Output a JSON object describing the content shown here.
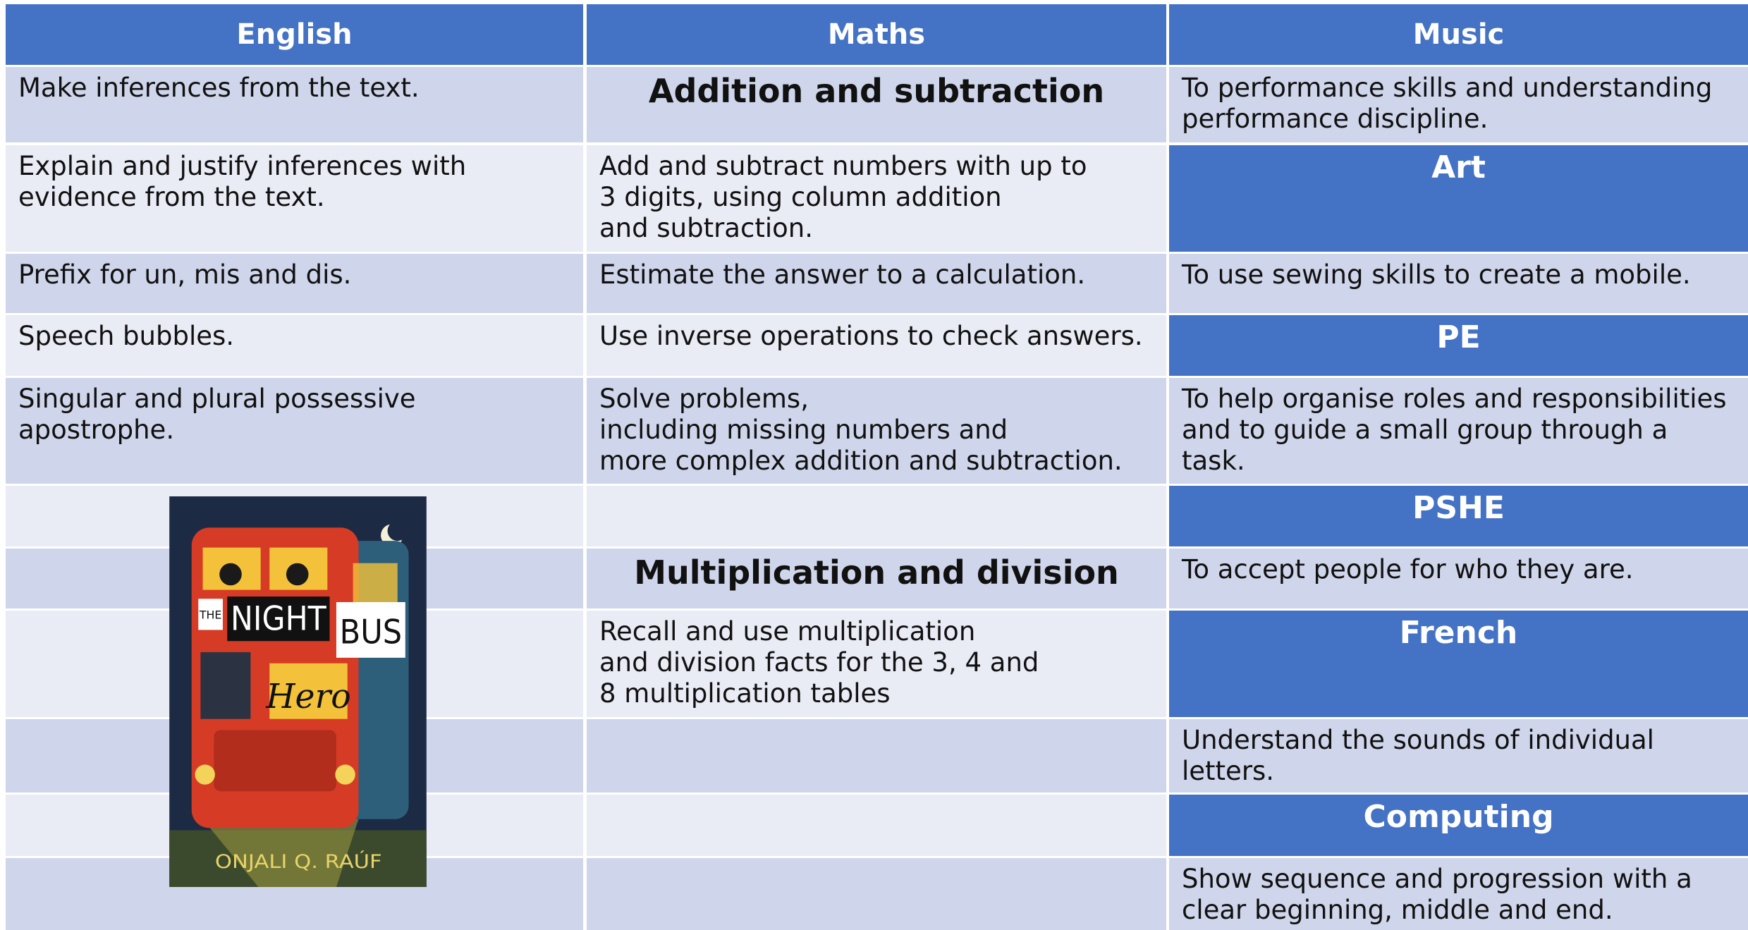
{
  "header": [
    "English",
    "Maths",
    "Music"
  ],
  "rows": [
    [
      "Make inferences from the text.",
      "Addition and subtraction",
      "To performance skills and understanding\nperformance discipline."
    ],
    [
      "Explain and justify inferences with\nevidence from the text.",
      "Add and subtract numbers with up to\n3 digits, using column addition\nand subtraction.",
      "Art"
    ],
    [
      "Prefix for un, mis and dis.",
      "Estimate the answer to a calculation.",
      "To use sewing skills to create a mobile."
    ],
    [
      "Speech bubbles.",
      "Use inverse operations to check answers.",
      "PE"
    ],
    [
      "Singular and plural possessive\napostrophe.",
      "Solve problems,\nincluding missing numbers and\nmore complex addition and subtraction.",
      "To help organise roles and responsibilities\nand to guide a small group through a\ntask."
    ],
    [
      null,
      null,
      "PSHE"
    ],
    [
      null,
      "Multiplication and division",
      "To accept people for who they are."
    ],
    [
      null,
      " Recall and use multiplication\nand division facts for the 3, 4 and\n8 multiplication tables",
      "French"
    ],
    [
      null,
      null,
      "Understand the sounds of individual\nletters."
    ],
    [
      null,
      null,
      "Computing"
    ],
    [
      null,
      null,
      "Show sequence and progression with a\nclear beginning, middle and end."
    ]
  ],
  "book": {
    "title_small": "THE",
    "title_1": "NIGHT",
    "title_2": "BUS",
    "title_3": "Hero",
    "author": "ONJALI Q. RAÚF"
  }
}
